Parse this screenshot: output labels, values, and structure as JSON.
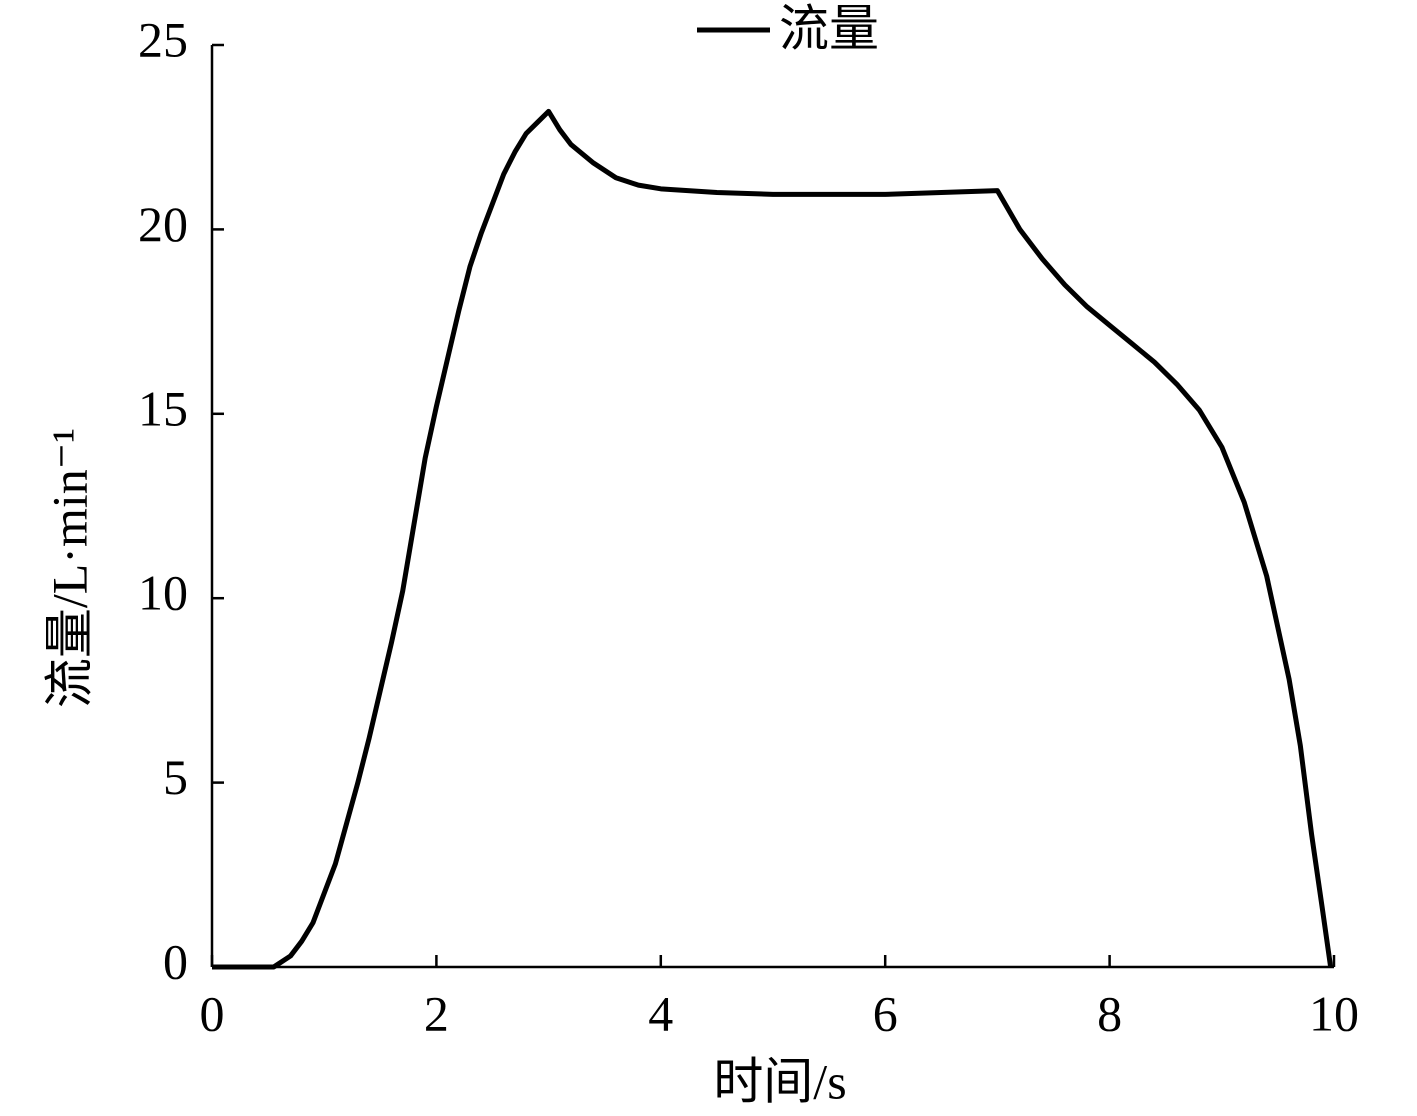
{
  "chart_data": {
    "type": "line",
    "xlabel": "时间/s",
    "ylabel": "流量/L·min⁻¹",
    "x": [
      0,
      0.5,
      0.55,
      0.7,
      0.8,
      0.9,
      1.0,
      1.1,
      1.2,
      1.3,
      1.4,
      1.5,
      1.6,
      1.7,
      1.8,
      1.9,
      2.0,
      2.1,
      2.2,
      2.3,
      2.4,
      2.5,
      2.6,
      2.7,
      2.8,
      2.9,
      3.0,
      3.1,
      3.2,
      3.4,
      3.6,
      3.8,
      4.0,
      4.5,
      5.0,
      6.0,
      6.5,
      7.0,
      7.2,
      7.4,
      7.6,
      7.8,
      8.0,
      8.2,
      8.4,
      8.6,
      8.8,
      9.0,
      9.2,
      9.4,
      9.6,
      9.7,
      9.8,
      9.9,
      9.97
    ],
    "series": [
      {
        "name": "流量",
        "color": "#000000",
        "values": [
          0,
          0,
          0,
          0.3,
          0.7,
          1.2,
          2.0,
          2.8,
          3.9,
          5.0,
          6.2,
          7.5,
          8.8,
          10.2,
          12.0,
          13.8,
          15.2,
          16.5,
          17.8,
          19.0,
          19.9,
          20.7,
          21.5,
          22.1,
          22.6,
          22.9,
          23.2,
          22.7,
          22.3,
          21.8,
          21.4,
          21.2,
          21.1,
          21.0,
          20.95,
          20.95,
          21.0,
          21.05,
          20.0,
          19.2,
          18.5,
          17.9,
          17.4,
          16.9,
          16.4,
          15.8,
          15.1,
          14.1,
          12.6,
          10.6,
          7.8,
          6.0,
          3.6,
          1.5,
          0
        ]
      }
    ],
    "xlim": [
      0,
      10
    ],
    "xticks": [
      0,
      2,
      4,
      6,
      8,
      10
    ],
    "ylim": [
      0,
      25
    ],
    "yticks": [
      0,
      5,
      10,
      15,
      20,
      25
    ],
    "legend": "top",
    "grid": false
  }
}
